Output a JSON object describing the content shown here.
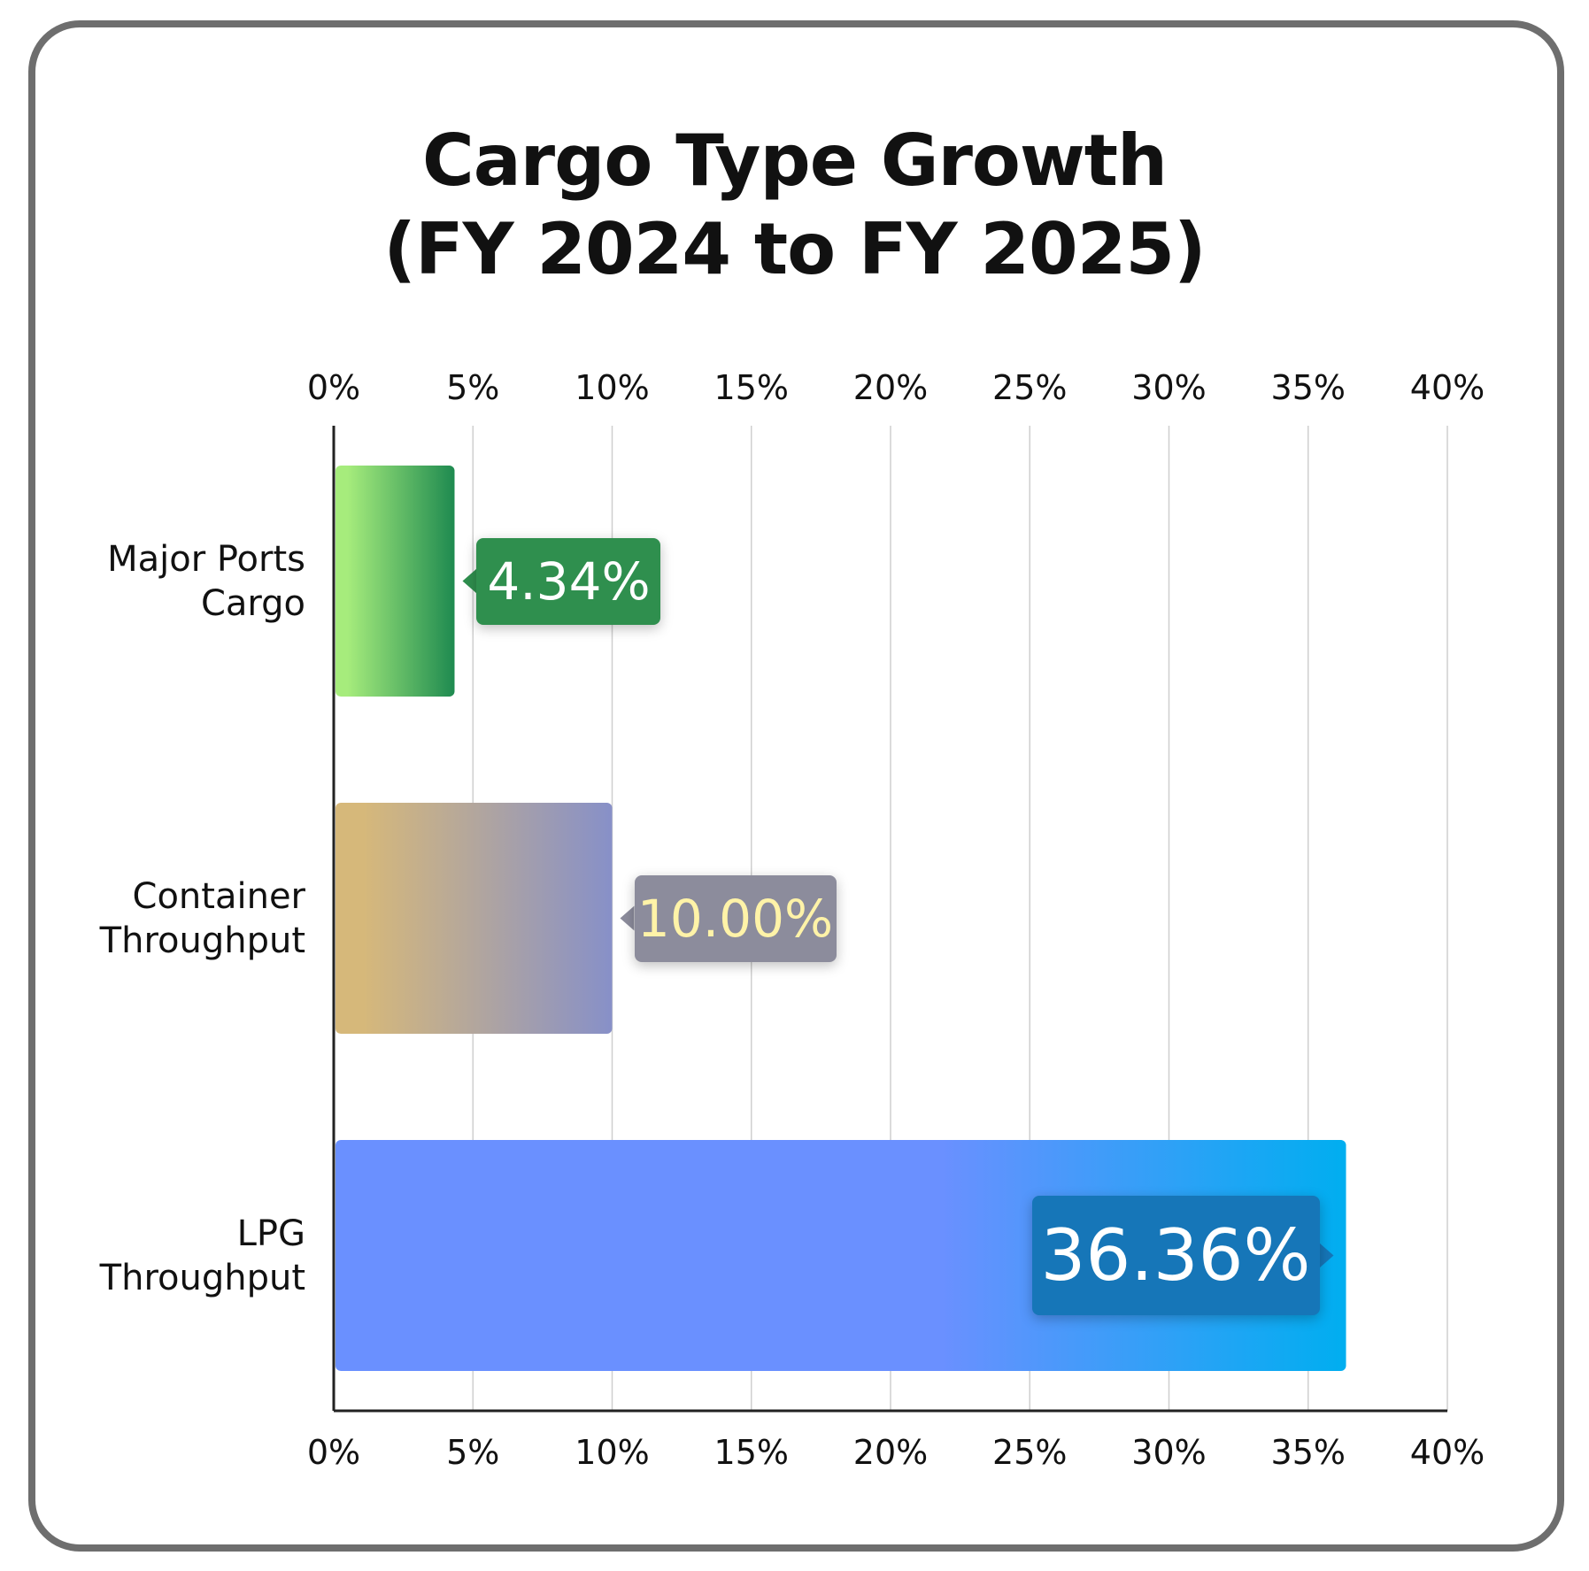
{
  "chart_data": {
    "type": "bar",
    "orientation": "horizontal",
    "title": [
      "Cargo Type Growth",
      "(FY 2024 to FY 2025)"
    ],
    "categories": [
      [
        "Major Ports",
        "Cargo"
      ],
      [
        "Container",
        "Throughput"
      ],
      [
        "LPG",
        "Throughput"
      ]
    ],
    "values": [
      4.34,
      10.0,
      36.36
    ],
    "data_labels": [
      "4.34%",
      "10.00%",
      "36.36%"
    ],
    "xlim": [
      0,
      40
    ],
    "xticks": [
      "0%",
      "5%",
      "10%",
      "15%",
      "20%",
      "25%",
      "30%",
      "35%",
      "40%"
    ],
    "tick_values": [
      0,
      5,
      10,
      15,
      20,
      25,
      30,
      35,
      40
    ],
    "axis_ticks_top_and_bottom": true,
    "grid": true,
    "bar_colors": [
      [
        "#a6ec7c",
        "#1e8a50"
      ],
      [
        "#d6b87a",
        "#8790c8"
      ],
      [
        "#6a90ff",
        "#00aef0"
      ]
    ],
    "label_colors": [
      "#2f8f4e",
      "#8c8c9c",
      "#1676b8"
    ],
    "label_text_colors": [
      "#ffffff",
      "#fff3a8",
      "#ffffff"
    ]
  }
}
